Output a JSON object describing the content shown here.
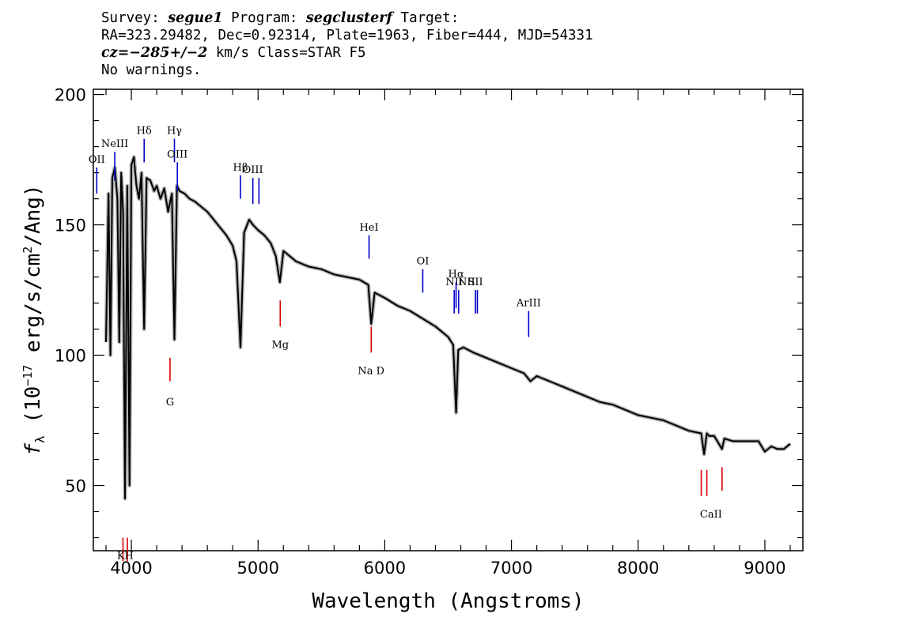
{
  "header": {
    "survey_label": "Survey: ",
    "survey": "segue1",
    "program_label": " Program: ",
    "program": "segclusterf",
    "target_label": " Target:",
    "line2": "RA=323.29482, Dec=0.92314, Plate=1963, Fiber=444, MJD=54331",
    "cz": "cz=−285+/−2",
    "cz_rest": " km/s Class=STAR F5",
    "line4": "No warnings."
  },
  "chart_data": {
    "type": "line",
    "title": "",
    "xlabel": "Wavelength (Angstroms)",
    "ylabel_main": "f",
    "ylabel_sub": "λ",
    "ylabel_rest": " (10",
    "ylabel_exp": "−17",
    "ylabel_rest2": " erg/s/cm",
    "ylabel_exp2": "2",
    "ylabel_rest3": "/Ang)",
    "xlim": [
      3700,
      9300
    ],
    "ylim": [
      25,
      202
    ],
    "x_ticks": [
      4000,
      5000,
      6000,
      7000,
      8000,
      9000
    ],
    "y_ticks": [
      50,
      100,
      150,
      200
    ],
    "x_tick_labels": [
      "4000",
      "5000",
      "6000",
      "7000",
      "8000",
      "9000"
    ],
    "y_tick_labels": [
      "50",
      "100",
      "150",
      "200"
    ],
    "grid": false,
    "colors": {
      "spectrum": "#000000",
      "error": "#b4b4b4",
      "emission": "#0000cc",
      "absorption": "#dd0000"
    },
    "spectrum_series": {
      "name": "",
      "x": [
        3800,
        3820,
        3835,
        3850,
        3870,
        3890,
        3905,
        3920,
        3935,
        3950,
        3968,
        3985,
        4000,
        4020,
        4040,
        4060,
        4080,
        4101,
        4120,
        4150,
        4180,
        4200,
        4230,
        4260,
        4290,
        4320,
        4340,
        4360,
        4380,
        4420,
        4460,
        4500,
        4550,
        4600,
        4650,
        4700,
        4750,
        4800,
        4830,
        4861,
        4890,
        4930,
        4960,
        5000,
        5050,
        5100,
        5140,
        5172,
        5200,
        5250,
        5300,
        5400,
        5500,
        5600,
        5700,
        5800,
        5870,
        5893,
        5920,
        6000,
        6100,
        6200,
        6300,
        6400,
        6500,
        6540,
        6563,
        6580,
        6620,
        6700,
        6800,
        6900,
        7000,
        7100,
        7150,
        7200,
        7300,
        7400,
        7500,
        7600,
        7700,
        7800,
        7900,
        8000,
        8100,
        8200,
        8300,
        8400,
        8498,
        8520,
        8542,
        8560,
        8600,
        8662,
        8680,
        8750,
        8850,
        8950,
        9000,
        9050,
        9100,
        9150,
        9200
      ],
      "y": [
        105,
        162,
        100,
        168,
        172,
        160,
        105,
        170,
        155,
        45,
        165,
        50,
        173,
        176,
        165,
        160,
        170,
        110,
        168,
        167,
        163,
        165,
        160,
        164,
        155,
        162,
        106,
        165,
        163,
        162,
        160,
        159,
        157,
        155,
        152,
        149,
        146,
        142,
        136,
        103,
        147,
        152,
        150,
        148,
        146,
        143,
        138,
        128,
        140,
        138,
        136,
        134,
        133,
        131,
        130,
        129,
        127,
        112,
        124,
        122,
        119,
        117,
        114,
        111,
        107,
        104,
        78,
        102,
        103,
        101,
        99,
        97,
        95,
        93,
        90,
        92,
        90,
        88,
        86,
        84,
        82,
        81,
        79,
        77,
        76,
        75,
        73,
        71,
        70,
        62,
        70,
        69,
        69,
        64,
        68,
        67,
        67,
        67,
        63,
        65,
        64,
        64,
        66
      ]
    },
    "emission_lines": [
      {
        "name": "OII",
        "label": "OII",
        "x": 3727,
        "y_top": 172,
        "y_bottom": 162
      },
      {
        "name": "NeIII",
        "label": "NeIII",
        "x": 3869,
        "y_top": 178,
        "y_bottom": 167
      },
      {
        "name": "Hdelta",
        "label": "Hδ",
        "x": 4101,
        "y_top": 183,
        "y_bottom": 174
      },
      {
        "name": "Hgamma",
        "label": "Hγ",
        "x": 4340,
        "y_top": 183,
        "y_bottom": 174
      },
      {
        "name": "OIII-4363",
        "label": "OIII",
        "x": 4363,
        "y_top": 174,
        "y_bottom": 163
      },
      {
        "name": "Hbeta",
        "label": "Hβ",
        "x": 4861,
        "y_top": 169,
        "y_bottom": 160
      },
      {
        "name": "OIII-4959",
        "label": "OIII",
        "x": 4959,
        "y_top": 168,
        "y_bottom": 158
      },
      {
        "name": "OIII-5007",
        "label": "",
        "x": 5007,
        "y_top": 168,
        "y_bottom": 158
      },
      {
        "name": "HeI",
        "label": "HeI",
        "x": 5876,
        "y_top": 146,
        "y_bottom": 137
      },
      {
        "name": "OI",
        "label": "OI",
        "x": 6300,
        "y_top": 133,
        "y_bottom": 124
      },
      {
        "name": "NII-6548",
        "label": "NII",
        "x": 6548,
        "y_top": 125,
        "y_bottom": 116
      },
      {
        "name": "Halpha",
        "label": "Hα",
        "x": 6563,
        "y_top": 128,
        "y_bottom": 118
      },
      {
        "name": "NII-6583",
        "label": "",
        "x": 6583,
        "y_top": 125,
        "y_bottom": 116
      },
      {
        "name": "SII-6716",
        "label": "SII",
        "x": 6716,
        "y_top": 125,
        "y_bottom": 116
      },
      {
        "name": "SII-6731",
        "label": "",
        "x": 6731,
        "y_top": 125,
        "y_bottom": 116
      }
    ],
    "emission_extra_labels": [
      {
        "name": "NII-6583-label",
        "label": "NII",
        "x": 6583
      },
      {
        "name": "ArIII",
        "label": "ArIII",
        "x": 7136,
        "y_top": 117,
        "y_bottom": 107
      }
    ],
    "absorption_lines": [
      {
        "name": "K",
        "x": 3934,
        "y_top": 30,
        "y_bottom": 21
      },
      {
        "name": "H",
        "x": 3969,
        "y_top": 30,
        "y_bottom": 21
      },
      {
        "name": "G",
        "x": 4305,
        "y_top": 99,
        "y_bottom": 90
      },
      {
        "name": "Mg",
        "x": 5175,
        "y_top": 121,
        "y_bottom": 111
      },
      {
        "name": "Na-D",
        "x": 5893,
        "y_top": 111,
        "y_bottom": 101
      },
      {
        "name": "CaII-8498",
        "x": 8498,
        "y_top": 56,
        "y_bottom": 46
      },
      {
        "name": "CaII-8542",
        "x": 8542,
        "y_top": 56,
        "y_bottom": 46
      },
      {
        "name": "CaII-8662",
        "x": 8662,
        "y_top": 57,
        "y_bottom": 48
      }
    ],
    "absorption_labels": [
      {
        "name": "KH-label",
        "label": "KH",
        "x": 3952,
        "y": 26
      },
      {
        "name": "G-label",
        "label": "G",
        "x": 4305,
        "y": 85
      },
      {
        "name": "Mg-label",
        "label": "Mg",
        "x": 5175,
        "y": 107
      },
      {
        "name": "NaD-label",
        "label": "Na  D",
        "x": 5893,
        "y": 97
      },
      {
        "name": "CaII-label",
        "label": "CaII",
        "x": 8575,
        "y": 42
      }
    ]
  }
}
